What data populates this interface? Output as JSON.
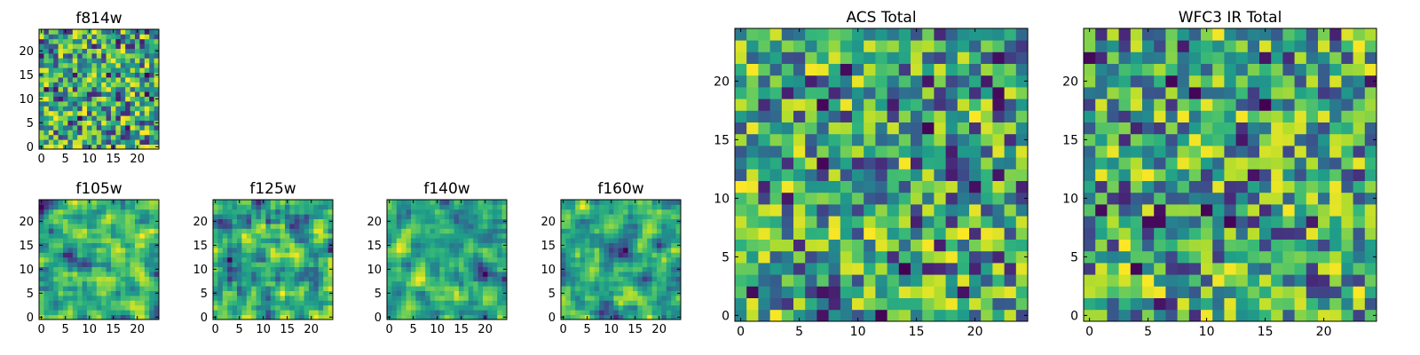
{
  "figure": {
    "colormap": "viridis",
    "colors": [
      "#440154",
      "#3b528b",
      "#21918c",
      "#5ec962",
      "#fde725"
    ],
    "frame_color": "#000000",
    "background": "#ffffff"
  },
  "chart_data": [
    {
      "type": "heatmap",
      "title": "f814w",
      "grid_size": 25,
      "xlim": [
        0,
        24
      ],
      "ylim": [
        0,
        24
      ],
      "xticks": [
        0,
        5,
        10,
        15,
        20
      ],
      "yticks": [
        0,
        5,
        10,
        15,
        20
      ],
      "xtick_labels": [
        "0",
        "5",
        "10",
        "15",
        "20"
      ],
      "ytick_labels": [
        "0",
        "5",
        "10",
        "15",
        "20"
      ],
      "values_note": "25x25 noise-like pixel map, normalized 0-1 on viridis",
      "seed": 11
    },
    {
      "type": "heatmap",
      "title": "f105w",
      "grid_size": 25,
      "xlim": [
        0,
        24
      ],
      "ylim": [
        0,
        24
      ],
      "xticks": [
        0,
        5,
        10,
        15,
        20
      ],
      "yticks": [
        0,
        5,
        10,
        15,
        20
      ],
      "xtick_labels": [
        "0",
        "5",
        "10",
        "15",
        "20"
      ],
      "ytick_labels": [
        "0",
        "5",
        "10",
        "15",
        "20"
      ],
      "values_note": "25x25 smooth noise map, normalized 0-1 on viridis",
      "seed": 23
    },
    {
      "type": "heatmap",
      "title": "f125w",
      "grid_size": 25,
      "xlim": [
        0,
        24
      ],
      "ylim": [
        0,
        24
      ],
      "xticks": [
        0,
        5,
        10,
        15,
        20
      ],
      "yticks": [
        0,
        5,
        10,
        15,
        20
      ],
      "xtick_labels": [
        "0",
        "5",
        "10",
        "15",
        "20"
      ],
      "ytick_labels": [
        "0",
        "5",
        "10",
        "15",
        "20"
      ],
      "values_note": "25x25 smooth noise map, normalized 0-1 on viridis",
      "seed": 37
    },
    {
      "type": "heatmap",
      "title": "f140w",
      "grid_size": 25,
      "xlim": [
        0,
        24
      ],
      "ylim": [
        0,
        24
      ],
      "xticks": [
        0,
        5,
        10,
        15,
        20
      ],
      "yticks": [
        0,
        5,
        10,
        15,
        20
      ],
      "xtick_labels": [
        "0",
        "5",
        "10",
        "15",
        "20"
      ],
      "ytick_labels": [
        "0",
        "5",
        "10",
        "15",
        "20"
      ],
      "values_note": "25x25 smooth noise map, normalized 0-1 on viridis",
      "seed": 41
    },
    {
      "type": "heatmap",
      "title": "f160w",
      "grid_size": 25,
      "xlim": [
        0,
        24
      ],
      "ylim": [
        0,
        24
      ],
      "xticks": [
        0,
        5,
        10,
        15,
        20
      ],
      "yticks": [
        0,
        5,
        10,
        15,
        20
      ],
      "xtick_labels": [
        "0",
        "5",
        "10",
        "15",
        "20"
      ],
      "ytick_labels": [
        "0",
        "5",
        "10",
        "15",
        "20"
      ],
      "values_note": "25x25 smooth noise map, normalized 0-1 on viridis",
      "seed": 53
    },
    {
      "type": "heatmap",
      "title": "ACS Total",
      "grid_size": 25,
      "xlim": [
        0,
        24
      ],
      "ylim": [
        0,
        24
      ],
      "xticks": [
        0,
        5,
        10,
        15,
        20
      ],
      "yticks": [
        0,
        5,
        10,
        15,
        20
      ],
      "xtick_labels": [
        "0",
        "5",
        "10",
        "15",
        "20"
      ],
      "ytick_labels": [
        "0",
        "5",
        "10",
        "15",
        "20"
      ],
      "values_note": "25x25 pixel map, normalized 0-1 on viridis",
      "seed": 67
    },
    {
      "type": "heatmap",
      "title": "WFC3 IR Total",
      "grid_size": 25,
      "xlim": [
        0,
        24
      ],
      "ylim": [
        0,
        24
      ],
      "xticks": [
        0,
        5,
        10,
        15,
        20
      ],
      "yticks": [
        0,
        5,
        10,
        15,
        20
      ],
      "xtick_labels": [
        "0",
        "5",
        "10",
        "15",
        "20"
      ],
      "ytick_labels": [
        "0",
        "5",
        "10",
        "15",
        "20"
      ],
      "values_note": "25x25 pixel map, normalized 0-1 on viridis",
      "seed": 79
    }
  ]
}
